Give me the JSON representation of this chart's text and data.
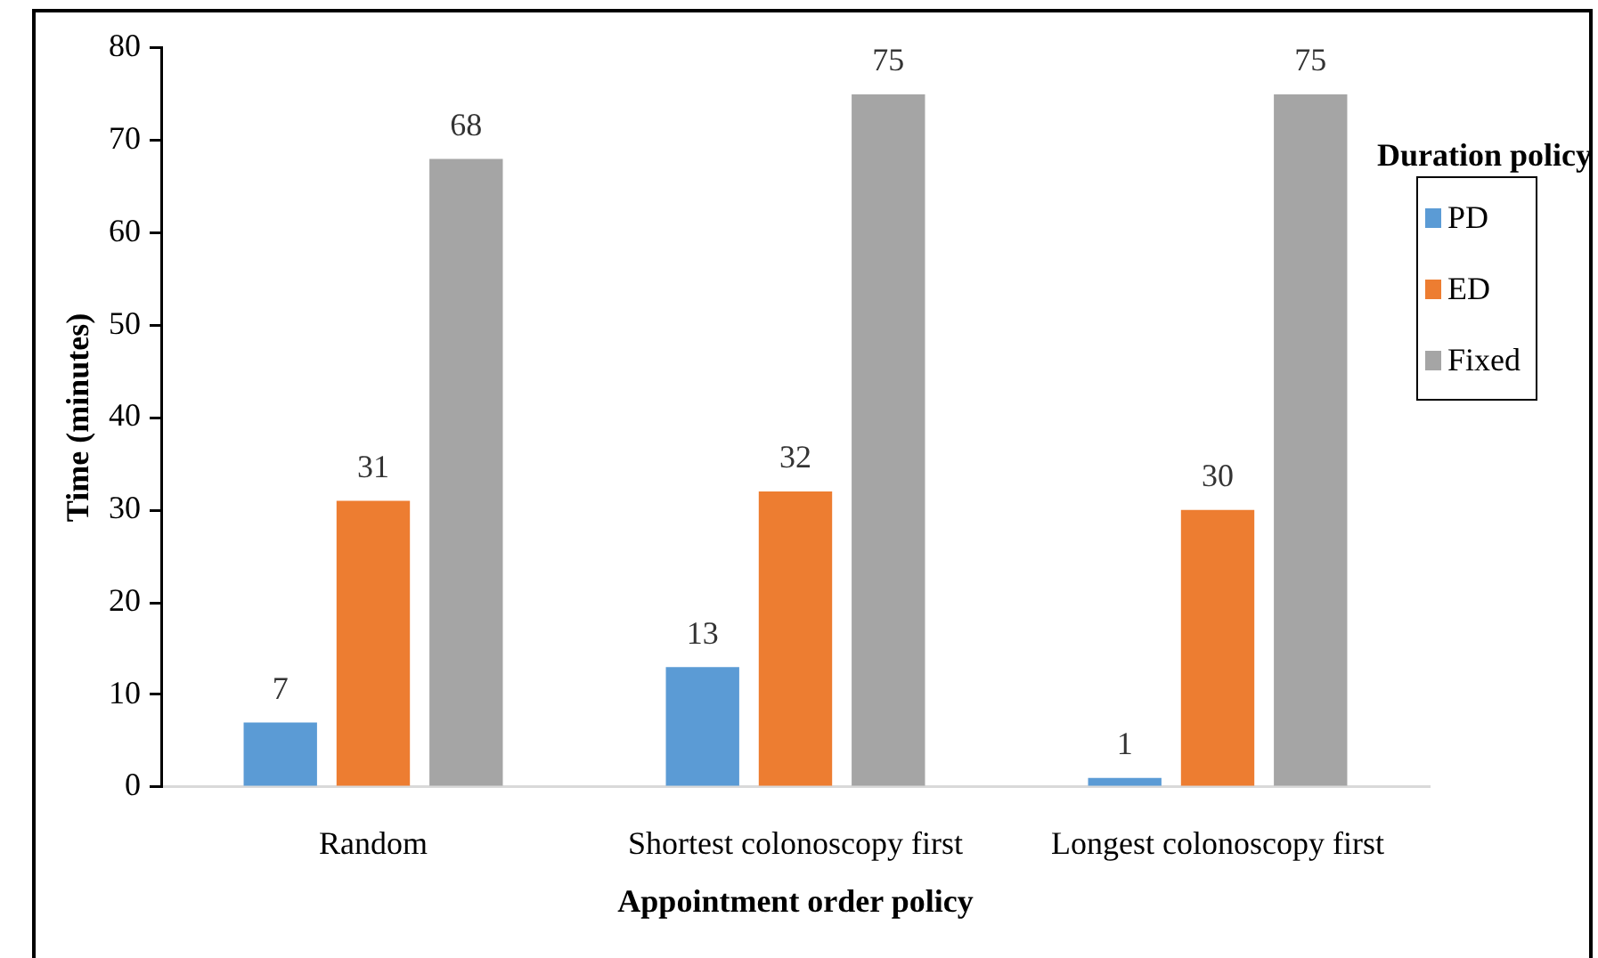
{
  "chart_data": {
    "type": "bar",
    "xlabel": "Appointment order policy",
    "ylabel": "Time (minutes)",
    "legend_title": "Duration policy",
    "legend": "right",
    "categories": [
      "Random",
      "Shortest colonoscopy first",
      "Longest colonoscopy first"
    ],
    "series": [
      {
        "name": "PD",
        "color": "#5b9bd5",
        "values": [
          7,
          13,
          1
        ]
      },
      {
        "name": "ED",
        "color": "#ed7d31",
        "values": [
          31,
          32,
          30
        ]
      },
      {
        "name": "Fixed",
        "color": "#a5a5a5",
        "values": [
          68,
          75,
          75
        ]
      }
    ],
    "ylim": [
      0,
      80
    ],
    "yticks": [
      0,
      10,
      20,
      30,
      40,
      50,
      60,
      70,
      80
    ],
    "data_labels": true
  }
}
